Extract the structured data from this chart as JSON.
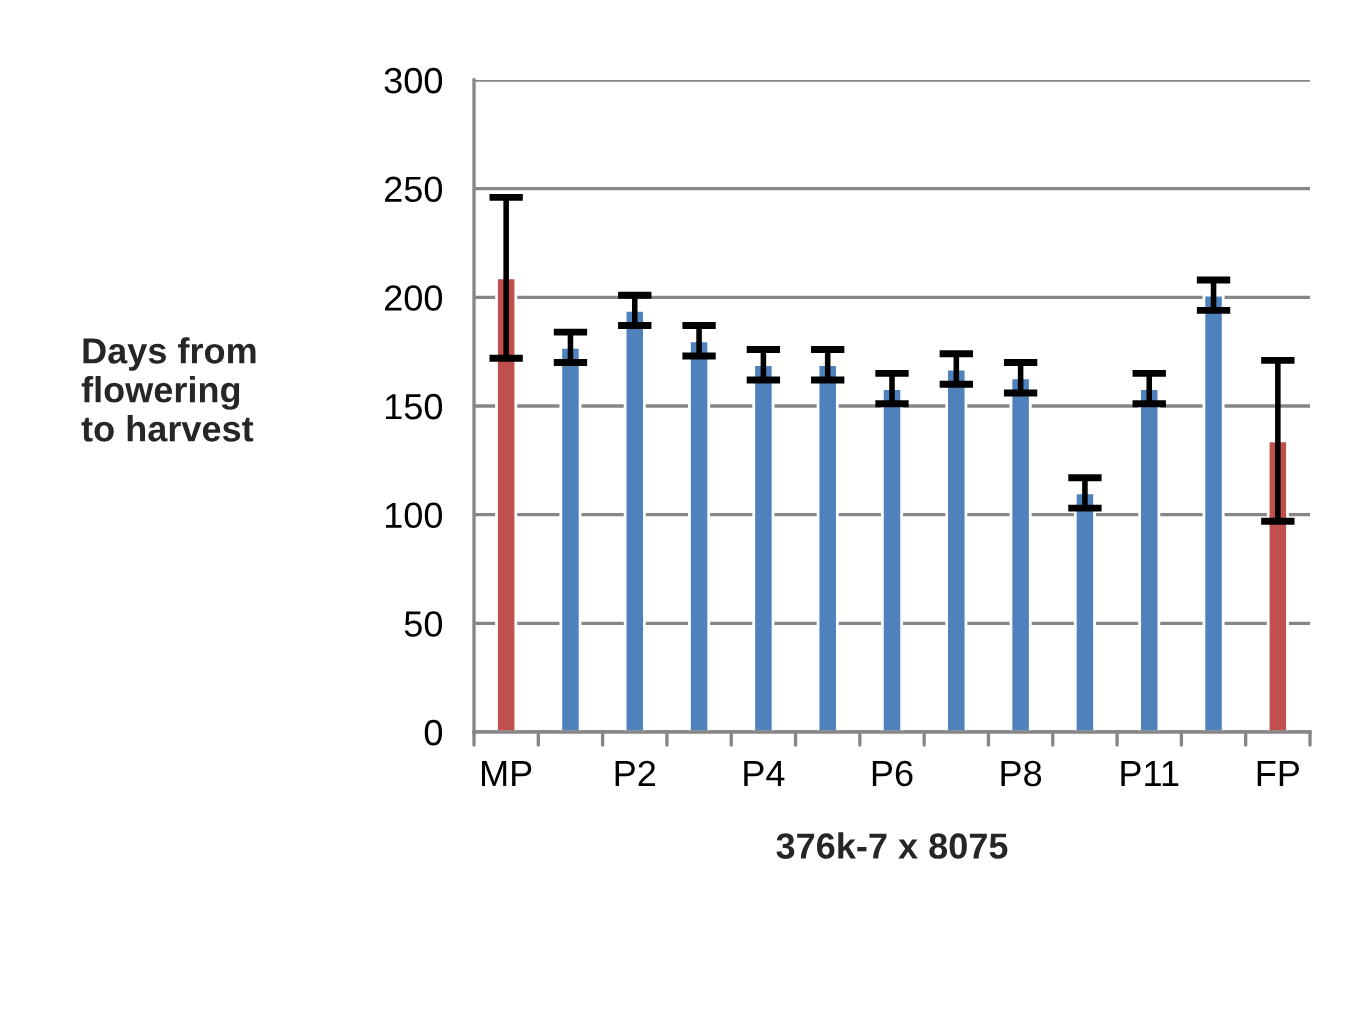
{
  "chart_data": {
    "type": "bar",
    "xlabel": "376k-7 x 8075",
    "ylabel": "Days from\nflowering\nto harvest",
    "categories": [
      "MP",
      null,
      "P2",
      null,
      "P4",
      null,
      "P6",
      null,
      "P8",
      null,
      "P11",
      null,
      "FP"
    ],
    "values": [
      209,
      177,
      194,
      180,
      169,
      169,
      158,
      167,
      163,
      110,
      158,
      201,
      134
    ],
    "errors": [
      37,
      7,
      7,
      7,
      7,
      7,
      7,
      7,
      7,
      7,
      7,
      7,
      37
    ],
    "colors": [
      "#c0504d",
      "#4f81bd",
      "#4f81bd",
      "#4f81bd",
      "#4f81bd",
      "#4f81bd",
      "#4f81bd",
      "#4f81bd",
      "#4f81bd",
      "#4f81bd",
      "#4f81bd",
      "#4f81bd",
      "#c0504d"
    ],
    "ylim": [
      0,
      300
    ],
    "yticks": [
      0,
      50,
      100,
      150,
      200,
      250,
      300
    ],
    "grid": "y"
  }
}
